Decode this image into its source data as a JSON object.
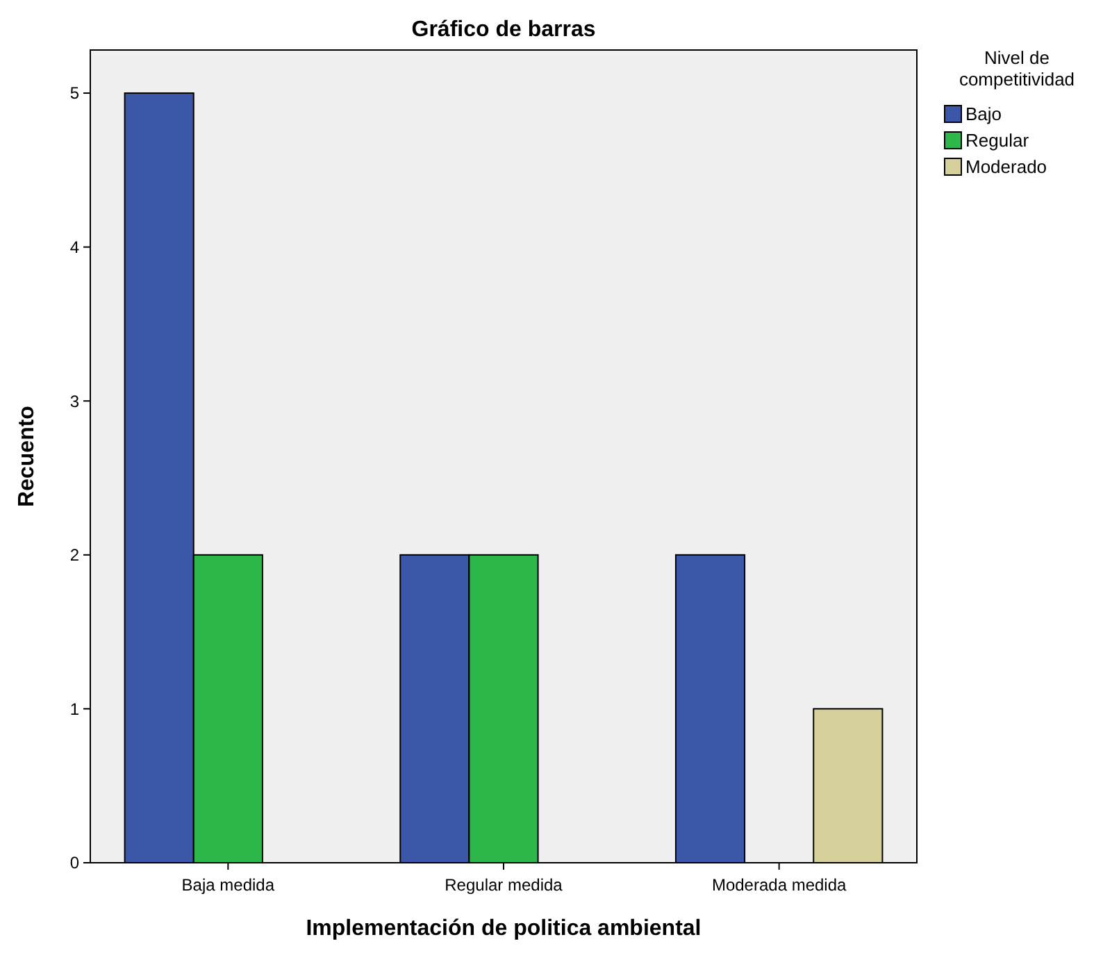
{
  "chart_data": {
    "type": "bar",
    "title": "Gráfico de barras",
    "xlabel": "Implementación de politica ambiental",
    "ylabel": "Recuento",
    "legend_title": "Nivel de competitividad",
    "categories": [
      "Baja medida",
      "Regular medida",
      "Moderada medida"
    ],
    "series": [
      {
        "name": "Bajo",
        "color": "#3c56a8",
        "values": [
          5,
          2,
          2
        ]
      },
      {
        "name": "Regular",
        "color": "#2eb84b",
        "values": [
          2,
          2,
          null
        ]
      },
      {
        "name": "Moderado",
        "color": "#d6d09a",
        "values": [
          null,
          null,
          1
        ]
      }
    ],
    "ylim": [
      0,
      5.28
    ],
    "yticks": [
      0,
      1,
      2,
      3,
      4,
      5
    ],
    "grid": false,
    "legend": "right"
  }
}
